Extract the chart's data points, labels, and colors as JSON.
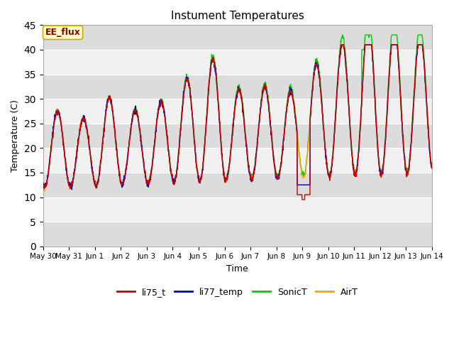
{
  "title": "Instument Temperatures",
  "xlabel": "Time",
  "ylabel": "Temperature (C)",
  "ylim": [
    0,
    45
  ],
  "yticks": [
    0,
    5,
    10,
    15,
    20,
    25,
    30,
    35,
    40,
    45
  ],
  "line_colors": {
    "li75_t": "#cc0000",
    "li77_temp": "#0000cc",
    "SonicT": "#00cc00",
    "AirT": "#ffa500"
  },
  "annotation_text": "EE_flux",
  "annotation_bg": "#ffffcc",
  "annotation_border": "#ccaa00",
  "annotation_text_color": "#8b0000",
  "bg_light": "#f0f0f0",
  "bg_dark": "#dcdcdc",
  "grid_color": "#ffffff",
  "tick_labels": [
    "May 30",
    "May 31",
    "Jun 1",
    "Jun 2",
    "Jun 3",
    "Jun 4",
    "Jun 5",
    "Jun 6",
    "Jun 7",
    "Jun 8",
    "Jun 9",
    "Jun 10",
    "Jun 11",
    "Jun 12",
    "Jun 13",
    "Jun 14"
  ],
  "legend_entries": [
    "li75_t",
    "li77_temp",
    "SonicT",
    "AirT"
  ]
}
